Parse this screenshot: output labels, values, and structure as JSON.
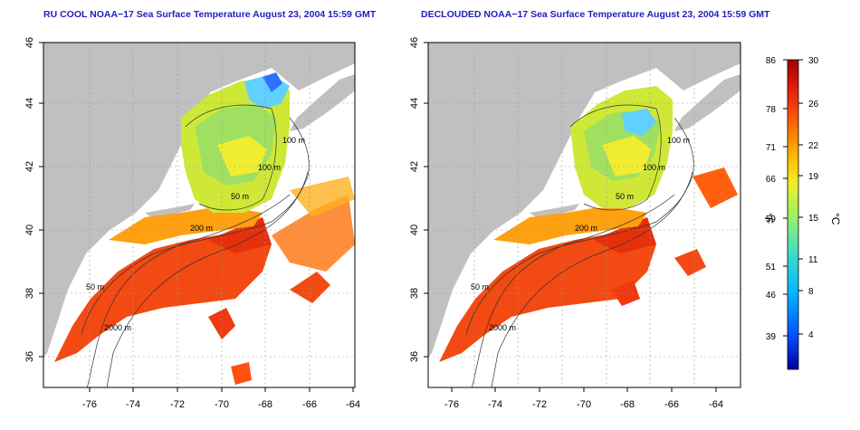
{
  "panels": [
    {
      "title": "RU COOL NOAA−17 Sea Surface Temperature August 23, 2004 15:59 GMT",
      "variant": "ru_cool",
      "x_ticks": [
        "-76",
        "-74",
        "-72",
        "-70",
        "-68",
        "-66",
        "-64"
      ],
      "y_ticks": [
        "36",
        "38",
        "40",
        "42",
        "44",
        "46"
      ],
      "contour_labels": [
        "100 m",
        "100 m",
        "50 m",
        "200 m",
        "50 m",
        "2000 m"
      ]
    },
    {
      "title": "DECLOUDED NOAA−17 Sea Surface Temperature August 23, 2004 15:59 GMT",
      "variant": "declouded",
      "x_ticks": [
        "-76",
        "-74",
        "-72",
        "-70",
        "-68",
        "-66",
        "-64"
      ],
      "y_ticks": [
        "36",
        "38",
        "40",
        "42",
        "44",
        "46"
      ],
      "contour_labels": [
        "100 m",
        "100 m",
        "50 m",
        "200 m",
        "50 m",
        "2000 m"
      ]
    }
  ],
  "colorbar": {
    "fahrenheit_ticks": [
      "86",
      "78",
      "71",
      "66",
      "59",
      "51",
      "46",
      "39"
    ],
    "celsius_ticks": [
      "30",
      "26",
      "22",
      "19",
      "15",
      "11",
      "8",
      "4"
    ],
    "fahrenheit_unit": "°F",
    "celsius_unit": "°C",
    "range_c": [
      0,
      30
    ],
    "colors": [
      "#0000a0",
      "#0050ff",
      "#00b8ff",
      "#40e0c0",
      "#a0f060",
      "#f0f020",
      "#ffb000",
      "#ff6000",
      "#e82010",
      "#a00000"
    ]
  },
  "colors": {
    "land": "#c0c0c0",
    "title": "#1f1fbf"
  }
}
